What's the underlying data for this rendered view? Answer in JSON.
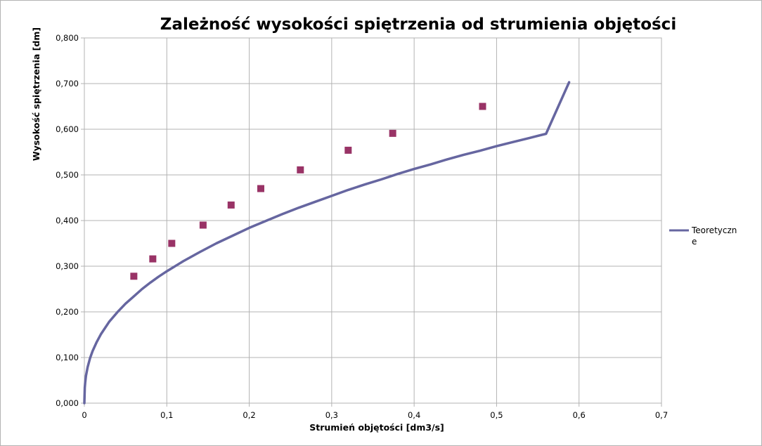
{
  "chart_data": {
    "type": "scatter",
    "title": "Zależność  wysokości spiętrzenia  od strumienia objętości",
    "xlabel": "Strumień objętości [dm3/s]",
    "ylabel": "Wysokość spiętrzenia [dm]",
    "xlim": [
      0,
      0.7
    ],
    "ylim": [
      0,
      0.8
    ],
    "x_ticks": [
      0,
      0.1,
      0.2,
      0.3,
      0.4,
      0.5,
      0.6,
      0.7
    ],
    "x_tick_labels": [
      "0",
      "0,1",
      "0,2",
      "0,3",
      "0,4",
      "0,5",
      "0,6",
      "0,7"
    ],
    "y_ticks": [
      0,
      0.1,
      0.2,
      0.3,
      0.4,
      0.5,
      0.6,
      0.7,
      0.8
    ],
    "y_tick_labels": [
      "0,000",
      "0,100",
      "0,200",
      "0,300",
      "0,400",
      "0,500",
      "0,600",
      "0,700",
      "0,800"
    ],
    "grid": true,
    "legend_position": "right",
    "series": [
      {
        "name": "Teoretyczne",
        "kind": "line",
        "color": "#6666a0",
        "x": [
          0,
          0.0005,
          0.001,
          0.002,
          0.004,
          0.007,
          0.01,
          0.015,
          0.02,
          0.03,
          0.04,
          0.05,
          0.06,
          0.07,
          0.08,
          0.09,
          0.1,
          0.12,
          0.14,
          0.16,
          0.18,
          0.2,
          0.22,
          0.24,
          0.26,
          0.28,
          0.3,
          0.32,
          0.34,
          0.36,
          0.38,
          0.4,
          0.42,
          0.44,
          0.46,
          0.48,
          0.5,
          0.52,
          0.54,
          0.56,
          0.588
        ],
        "y": [
          0,
          0.034,
          0.045,
          0.06,
          0.079,
          0.099,
          0.114,
          0.134,
          0.151,
          0.178,
          0.199,
          0.218,
          0.234,
          0.25,
          0.264,
          0.277,
          0.289,
          0.311,
          0.331,
          0.35,
          0.367,
          0.384,
          0.399,
          0.414,
          0.428,
          0.441,
          0.454,
          0.467,
          0.479,
          0.49,
          0.502,
          0.513,
          0.523,
          0.534,
          0.544,
          0.553,
          0.563,
          0.572,
          0.581,
          0.59,
          0.703
        ]
      },
      {
        "name": "",
        "kind": "points",
        "color": "#993366",
        "x": [
          0.06,
          0.083,
          0.106,
          0.144,
          0.178,
          0.214,
          0.262,
          0.32,
          0.374,
          0.483
        ],
        "y": [
          0.278,
          0.316,
          0.35,
          0.39,
          0.434,
          0.47,
          0.511,
          0.554,
          0.591,
          0.65
        ]
      }
    ]
  }
}
